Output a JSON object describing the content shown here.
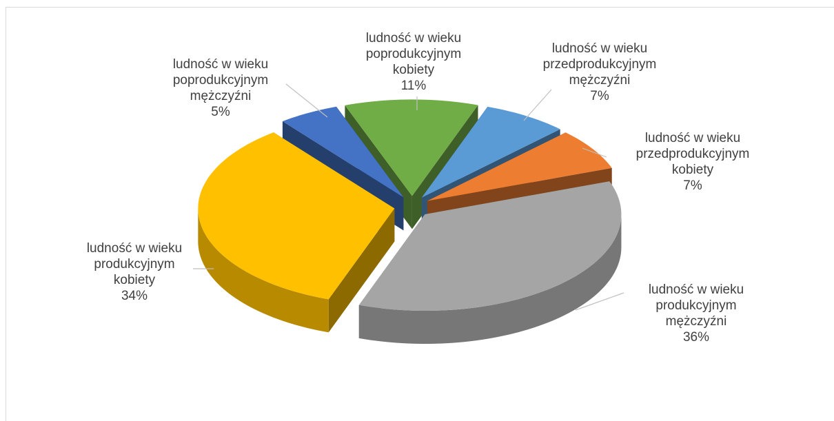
{
  "chart_data": {
    "type": "pie3d",
    "categories": [
      "ludność w wieku poprodukcyjnym kobiety",
      "ludność w wieku przedprodukcyjnym mężczyźni",
      "ludność w wieku przedprodukcyjnym kobiety",
      "ludność w wieku produkcyjnym mężczyźni",
      "ludność w wieku produkcyjnym kobiety",
      "ludność w wieku poprodukcyjnym mężczyźni"
    ],
    "values": [
      11,
      7,
      7,
      36,
      34,
      5
    ],
    "value_labels": [
      "11%",
      "7%",
      "7%",
      "36%",
      "34%",
      "5%"
    ],
    "colors": [
      "#70ad47",
      "#5b9bd5",
      "#ed7d31",
      "#a5a5a5",
      "#ffc000",
      "#4472c4"
    ]
  }
}
